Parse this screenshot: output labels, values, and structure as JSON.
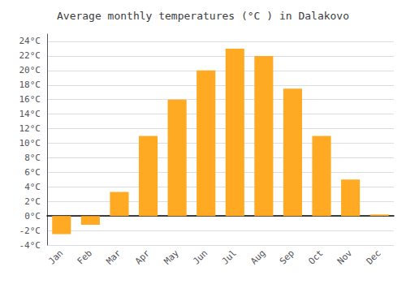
{
  "chart_data": {
    "type": "bar",
    "title": "Average monthly temperatures (°C ) in Dalakovo",
    "categories": [
      "Jan",
      "Feb",
      "Mar",
      "Apr",
      "May",
      "Jun",
      "Jul",
      "Aug",
      "Sep",
      "Oct",
      "Nov",
      "Dec"
    ],
    "values": [
      -2.5,
      -1.2,
      3.3,
      11.0,
      16.0,
      20.0,
      23.0,
      22.0,
      17.5,
      11.0,
      5.0,
      0.2
    ],
    "color": "#FFAA22",
    "ylim": [
      -4,
      25
    ],
    "yticks": [
      {
        "value": -4,
        "label": "-4°C"
      },
      {
        "value": -2,
        "label": "-2°C"
      },
      {
        "value": 0,
        "label": "0°C"
      },
      {
        "value": 2,
        "label": "2°C"
      },
      {
        "value": 4,
        "label": "4°C"
      },
      {
        "value": 6,
        "label": "6°C"
      },
      {
        "value": 8,
        "label": "8°C"
      },
      {
        "value": 10,
        "label": "10°C"
      },
      {
        "value": 12,
        "label": "12°C"
      },
      {
        "value": 14,
        "label": "14°C"
      },
      {
        "value": 16,
        "label": "16°C"
      },
      {
        "value": 18,
        "label": "18°C"
      },
      {
        "value": 20,
        "label": "20°C"
      },
      {
        "value": 22,
        "label": "22°C"
      },
      {
        "value": 24,
        "label": "24°C"
      }
    ],
    "grid": true
  }
}
